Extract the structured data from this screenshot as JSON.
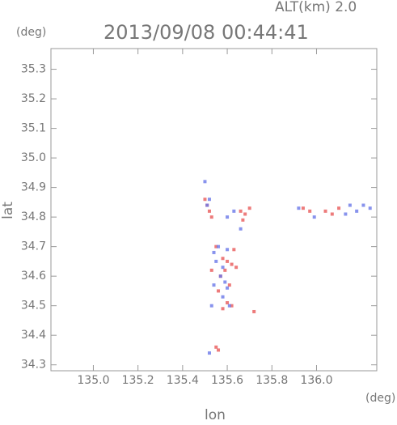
{
  "chart_data": {
    "type": "scatter",
    "title": "2013/09/08 00:44:41",
    "subtitle": "ALT(km) 2.0",
    "y_unit": "(deg)",
    "x_unit": "(deg)",
    "xlabel": "lon",
    "ylabel": "lat",
    "xlim": [
      134.81,
      136.27
    ],
    "ylim": [
      34.28,
      35.37
    ],
    "xticks": [
      {
        "value": 135,
        "label": "135.0"
      },
      135.2,
      135.4,
      135.6,
      135.8,
      {
        "value": 136,
        "label": "136.0"
      }
    ],
    "yticks": [
      34.3,
      34.4,
      34.5,
      34.6,
      34.7,
      34.8,
      34.9,
      {
        "value": 35,
        "label": "35.0"
      },
      35.1,
      35.2,
      35.3
    ],
    "series": [
      {
        "color": "#e85a5a",
        "x": [
          135.51,
          135.52,
          135.53,
          135.5,
          135.66,
          135.68,
          135.7,
          135.67,
          135.58,
          135.6,
          135.62,
          135.59,
          135.64,
          135.57,
          135.61,
          135.56,
          135.6,
          135.58,
          135.62,
          135.72,
          135.55,
          135.56,
          135.94,
          135.97,
          136.04,
          136.07,
          136.1,
          135.63,
          135.55,
          135.53
        ],
        "values": [
          34.84,
          34.82,
          34.8,
          34.86,
          34.82,
          34.81,
          34.83,
          34.79,
          34.66,
          34.65,
          34.64,
          34.62,
          34.63,
          34.6,
          34.57,
          34.55,
          34.51,
          34.49,
          34.5,
          34.48,
          34.36,
          34.35,
          34.83,
          34.82,
          34.82,
          34.81,
          34.83,
          34.69,
          34.7,
          34.62
        ]
      },
      {
        "color": "#6a78e8",
        "x": [
          135.5,
          135.52,
          135.51,
          135.6,
          135.63,
          135.54,
          135.56,
          135.6,
          135.55,
          135.58,
          135.57,
          135.54,
          135.59,
          135.58,
          135.61,
          135.53,
          136.15,
          136.18,
          136.21,
          136.24,
          136.13,
          135.92,
          135.99,
          135.52,
          135.66,
          135.6
        ],
        "values": [
          34.92,
          34.86,
          34.84,
          34.8,
          34.82,
          34.68,
          34.7,
          34.69,
          34.65,
          34.63,
          34.6,
          34.57,
          34.58,
          34.53,
          34.5,
          34.5,
          34.84,
          34.82,
          34.84,
          34.83,
          34.81,
          34.83,
          34.8,
          34.34,
          34.76,
          34.56
        ]
      }
    ]
  }
}
